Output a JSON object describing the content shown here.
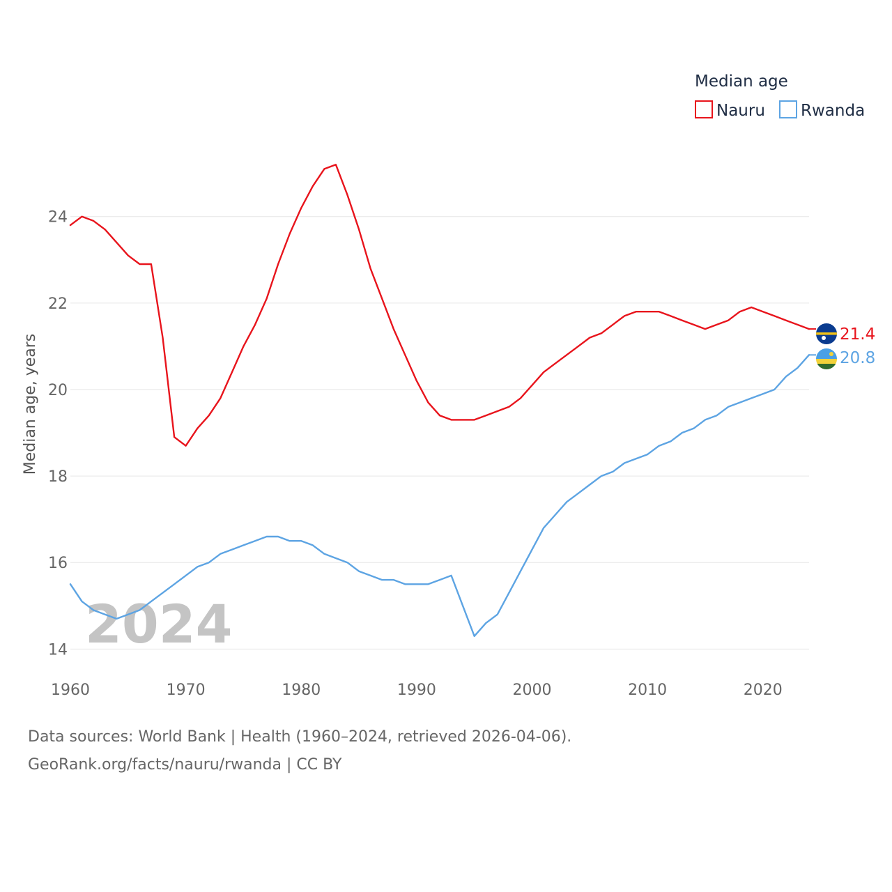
{
  "chart_data": {
    "type": "line",
    "year_label": "2024",
    "ylabel": "Median age, years",
    "ylim": [
      13.7,
      25.3
    ],
    "xlim": [
      1960,
      2024
    ],
    "yticks": [
      14,
      16,
      18,
      20,
      22,
      24
    ],
    "xticks": [
      1960,
      1970,
      1980,
      1990,
      2000,
      2010,
      2020
    ],
    "legend": {
      "title": "Median age",
      "position": "top-right"
    },
    "series": [
      {
        "name": "Nauru",
        "color": "#e8141c",
        "end_label": "21.4",
        "flag": "nauru-flag",
        "x": [
          1960,
          1961,
          1962,
          1963,
          1964,
          1965,
          1966,
          1967,
          1968,
          1969,
          1970,
          1971,
          1972,
          1973,
          1974,
          1975,
          1976,
          1977,
          1978,
          1979,
          1980,
          1981,
          1982,
          1983,
          1984,
          1985,
          1986,
          1987,
          1988,
          1989,
          1990,
          1991,
          1992,
          1993,
          1994,
          1995,
          1996,
          1997,
          1998,
          1999,
          2000,
          2001,
          2002,
          2003,
          2004,
          2005,
          2006,
          2007,
          2008,
          2009,
          2010,
          2011,
          2012,
          2013,
          2014,
          2015,
          2016,
          2017,
          2018,
          2019,
          2020,
          2021,
          2022,
          2023,
          2024
        ],
        "values": [
          23.8,
          24.0,
          23.9,
          23.7,
          23.4,
          23.1,
          22.9,
          22.9,
          21.2,
          18.9,
          18.7,
          19.1,
          19.4,
          19.8,
          20.4,
          21.0,
          21.5,
          22.1,
          22.9,
          23.6,
          24.2,
          24.7,
          25.1,
          25.2,
          24.5,
          23.7,
          22.8,
          22.1,
          21.4,
          20.8,
          20.2,
          19.7,
          19.4,
          19.3,
          19.3,
          19.3,
          19.4,
          19.5,
          19.6,
          19.8,
          20.1,
          20.4,
          20.6,
          20.8,
          21.0,
          21.2,
          21.3,
          21.5,
          21.7,
          21.8,
          21.8,
          21.8,
          21.7,
          21.6,
          21.5,
          21.4,
          21.5,
          21.6,
          21.8,
          21.9,
          21.8,
          21.7,
          21.6,
          21.5,
          21.4
        ]
      },
      {
        "name": "Rwanda",
        "color": "#5da4e3",
        "end_label": "20.8",
        "flag": "rwanda-flag",
        "x": [
          1960,
          1961,
          1962,
          1963,
          1964,
          1965,
          1966,
          1967,
          1968,
          1969,
          1970,
          1971,
          1972,
          1973,
          1974,
          1975,
          1976,
          1977,
          1978,
          1979,
          1980,
          1981,
          1982,
          1983,
          1984,
          1985,
          1986,
          1987,
          1988,
          1989,
          1990,
          1991,
          1992,
          1993,
          1994,
          1995,
          1996,
          1997,
          1998,
          1999,
          2000,
          2001,
          2002,
          2003,
          2004,
          2005,
          2006,
          2007,
          2008,
          2009,
          2010,
          2011,
          2012,
          2013,
          2014,
          2015,
          2016,
          2017,
          2018,
          2019,
          2020,
          2021,
          2022,
          2023,
          2024
        ],
        "values": [
          15.5,
          15.1,
          14.9,
          14.8,
          14.7,
          14.8,
          14.9,
          15.1,
          15.3,
          15.5,
          15.7,
          15.9,
          16.0,
          16.2,
          16.3,
          16.4,
          16.5,
          16.6,
          16.6,
          16.5,
          16.5,
          16.4,
          16.2,
          16.1,
          16.0,
          15.8,
          15.7,
          15.6,
          15.6,
          15.5,
          15.5,
          15.5,
          15.6,
          15.7,
          15.0,
          14.3,
          14.6,
          14.8,
          15.3,
          15.8,
          16.3,
          16.8,
          17.1,
          17.4,
          17.6,
          17.8,
          18.0,
          18.1,
          18.3,
          18.4,
          18.5,
          18.7,
          18.8,
          19.0,
          19.1,
          19.3,
          19.4,
          19.6,
          19.7,
          19.8,
          19.9,
          20.0,
          20.3,
          20.5,
          20.8
        ]
      }
    ]
  },
  "source": {
    "line1": "Data sources: World Bank | Health (1960–2024, retrieved 2026-04-06).",
    "line2": "GeoRank.org/facts/nauru/rwanda | CC BY"
  }
}
